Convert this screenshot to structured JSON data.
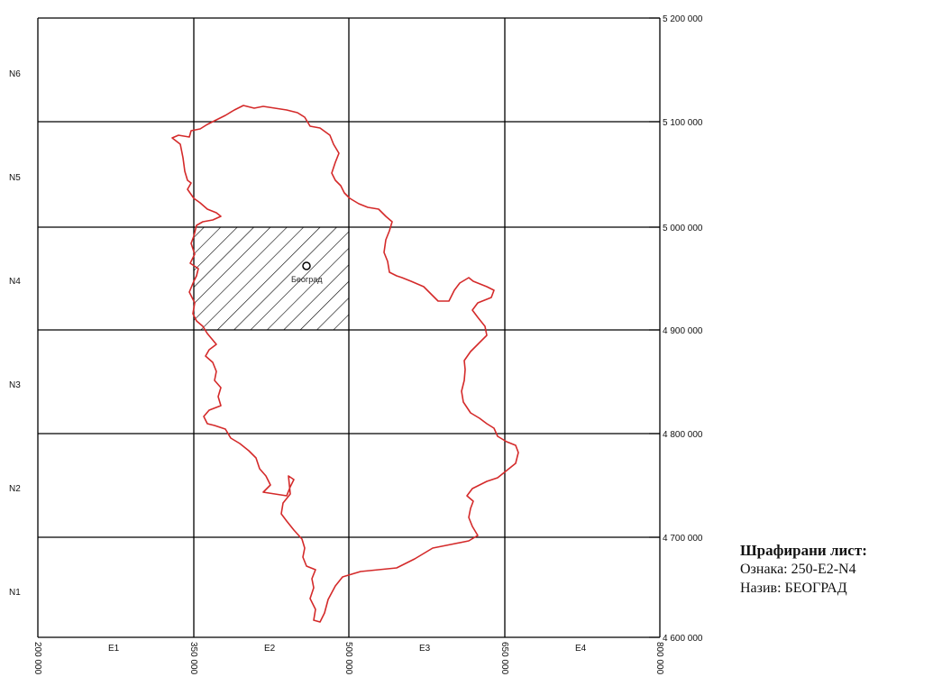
{
  "map": {
    "columns": [
      "E1",
      "E2",
      "E3",
      "E4"
    ],
    "rows": [
      "N6",
      "N5",
      "N4",
      "N3",
      "N2",
      "N1"
    ],
    "x_ticks": [
      "200 000",
      "350 000",
      "500 000",
      "650 000",
      "800 000"
    ],
    "y_ticks": [
      "5 200 000",
      "5 100 000",
      "5 000 000",
      "4 900 000",
      "4 800 000",
      "4 700 000",
      "4 600 000"
    ],
    "x_range": [
      200000,
      800000
    ],
    "y_range": [
      4600000,
      5200000
    ],
    "highlighted_sheet": {
      "column": "E2",
      "row": "N4"
    },
    "city": {
      "name": "Београд",
      "x": 477500,
      "y": 4962000
    },
    "border_color": "#d42a2a"
  },
  "legend": {
    "title": "Шрафирани лист:",
    "code": "Ознака: 250-E2-N4",
    "name": "Назив: БЕОГРАД"
  }
}
